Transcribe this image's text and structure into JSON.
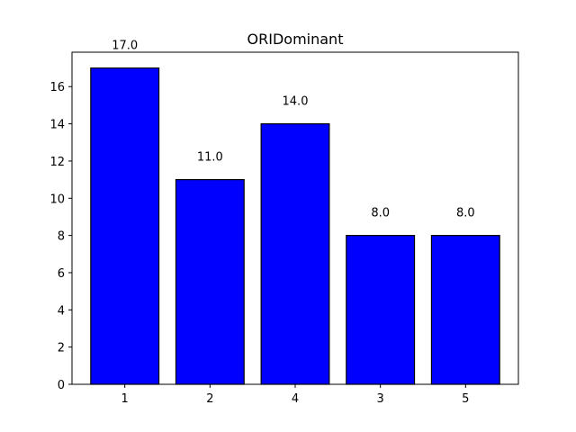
{
  "chart_data": {
    "type": "bar",
    "title": "ORIDominant",
    "xlabel": "",
    "ylabel": "",
    "categories": [
      "1",
      "2",
      "4",
      "3",
      "5"
    ],
    "values": [
      17,
      11,
      14,
      8,
      8
    ],
    "data_labels": [
      "17.0",
      "11.0",
      "14.0",
      "8.0",
      "8.0"
    ],
    "ylim": [
      0,
      17.85
    ],
    "yticks": [
      0,
      2,
      4,
      6,
      8,
      10,
      12,
      14,
      16
    ],
    "bar_color": "#0000ff",
    "bar_edge_color": "#000000",
    "grid": false,
    "legend": "none"
  }
}
